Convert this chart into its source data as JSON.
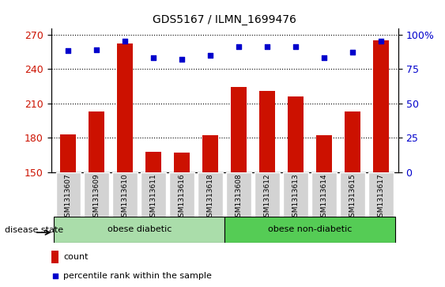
{
  "title": "GDS5167 / ILMN_1699476",
  "samples": [
    "GSM1313607",
    "GSM1313609",
    "GSM1313610",
    "GSM1313611",
    "GSM1313616",
    "GSM1313618",
    "GSM1313608",
    "GSM1313612",
    "GSM1313613",
    "GSM1313614",
    "GSM1313615",
    "GSM1313617"
  ],
  "counts": [
    183,
    203,
    262,
    168,
    167,
    182,
    224,
    221,
    216,
    182,
    203,
    265
  ],
  "percentiles": [
    88,
    89,
    95,
    83,
    82,
    85,
    91,
    91,
    91,
    83,
    87,
    95
  ],
  "groups": [
    {
      "label": "obese diabetic",
      "start": 0,
      "end": 6,
      "color": "#aaddaa"
    },
    {
      "label": "obese non-diabetic",
      "start": 6,
      "end": 12,
      "color": "#55cc55"
    }
  ],
  "bar_color": "#CC1100",
  "dot_color": "#0000CC",
  "left_yticks": [
    150,
    180,
    210,
    240,
    270
  ],
  "left_ylim": [
    150,
    275
  ],
  "right_yticks": [
    0,
    25,
    50,
    75,
    100
  ],
  "tick_label_color_left": "#CC1100",
  "tick_label_color_right": "#0000CC",
  "background_xtick": "#D3D3D3",
  "legend_count_label": "count",
  "legend_pct_label": "percentile rank within the sample"
}
